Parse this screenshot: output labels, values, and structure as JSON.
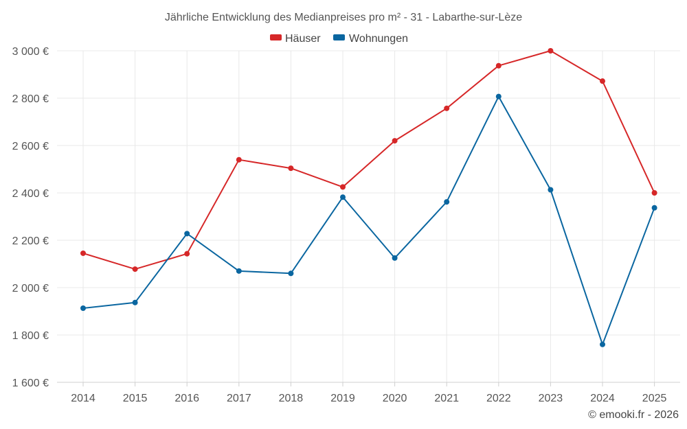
{
  "chart_data": {
    "type": "line",
    "title": "Jährliche Entwicklung des Medianpreises pro m² - 31 - Labarthe-sur-Lèze",
    "xlabel": "",
    "ylabel": "",
    "categories": [
      "2014",
      "2015",
      "2016",
      "2017",
      "2018",
      "2019",
      "2020",
      "2021",
      "2022",
      "2023",
      "2024",
      "2025"
    ],
    "ylim": [
      1600,
      3000
    ],
    "yticks": [
      1600,
      1800,
      2000,
      2200,
      2400,
      2600,
      2800,
      3000
    ],
    "ytick_labels": [
      "1 600 €",
      "1 800 €",
      "2 000 €",
      "2 200 €",
      "2 400 €",
      "2 600 €",
      "2 800 €",
      "3 000 €"
    ],
    "grid": true,
    "legend_position": "top-center",
    "series": [
      {
        "name": "Häuser",
        "color": "#d62728",
        "values": [
          2145,
          2078,
          2143,
          2540,
          2504,
          2425,
          2620,
          2757,
          2937,
          3000,
          2872,
          2400
        ]
      },
      {
        "name": "Wohnungen",
        "color": "#0a66a0",
        "values": [
          1913,
          1937,
          2228,
          2070,
          2060,
          2382,
          2125,
          2362,
          2807,
          2413,
          1760,
          2337
        ]
      }
    ]
  },
  "credit": "© emooki.fr - 2026"
}
